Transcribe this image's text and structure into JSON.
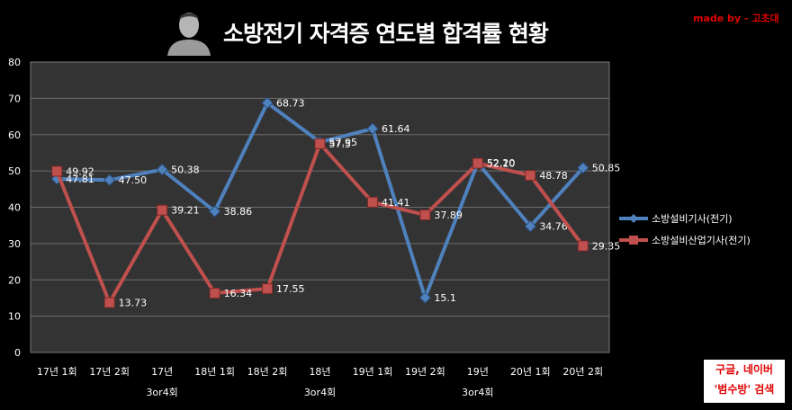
{
  "header": {
    "title": "소방전기 자격증 연도별 합격률 현황",
    "made_by": "made by - 고초대"
  },
  "search_box": {
    "line1": "구글, 네이버",
    "line2": "'범수방' 검색"
  },
  "colors": {
    "series1": "#4f81bd",
    "series2": "#c0504d",
    "plot_bg": "#333333",
    "grid": "#6e6e6e"
  },
  "chart_data": {
    "type": "line",
    "categories": [
      "17년 1회",
      "17년 2회",
      "17년 3or4회",
      "18년 1회",
      "18년 2회",
      "18년 3or4회",
      "19년 1회",
      "19년 2회",
      "19년 3or4회",
      "20년 1회",
      "20년 2회"
    ],
    "category_lines": [
      [
        "17년 1회"
      ],
      [
        "17년 2회"
      ],
      [
        "17년",
        "3or4회"
      ],
      [
        "18년 1회"
      ],
      [
        "18년 2회"
      ],
      [
        "18년",
        "3or4회"
      ],
      [
        "19년 1회"
      ],
      [
        "19년 2회"
      ],
      [
        "19년",
        "3or4회"
      ],
      [
        "20년 1회"
      ],
      [
        "20년 2회"
      ]
    ],
    "series": [
      {
        "name": "소방설비기사(전기)",
        "values": [
          47.81,
          47.5,
          50.38,
          38.86,
          68.73,
          57.95,
          61.64,
          15.1,
          52.2,
          34.76,
          50.85
        ],
        "labels": [
          "47.81",
          "47.50",
          "50.38",
          "38.86",
          "68.73",
          "57.95",
          "61.64",
          "15.1",
          "52.20",
          "34.76",
          "50.85"
        ]
      },
      {
        "name": "소방설비산업기사(전기)",
        "values": [
          49.92,
          13.73,
          39.21,
          16.34,
          17.55,
          57.5,
          41.41,
          37.89,
          52.1,
          48.78,
          29.35
        ],
        "labels": [
          "49.92",
          "13.73",
          "39.21",
          "16.34",
          "17.55",
          "57.5",
          "41.41",
          "37.89",
          "52.10",
          "48.78",
          "29.35"
        ]
      }
    ],
    "ylim": [
      0,
      80
    ],
    "yticks": [
      "0",
      "10",
      "20",
      "30",
      "40",
      "50",
      "60",
      "70",
      "80"
    ],
    "grid": true,
    "legend": "right"
  }
}
